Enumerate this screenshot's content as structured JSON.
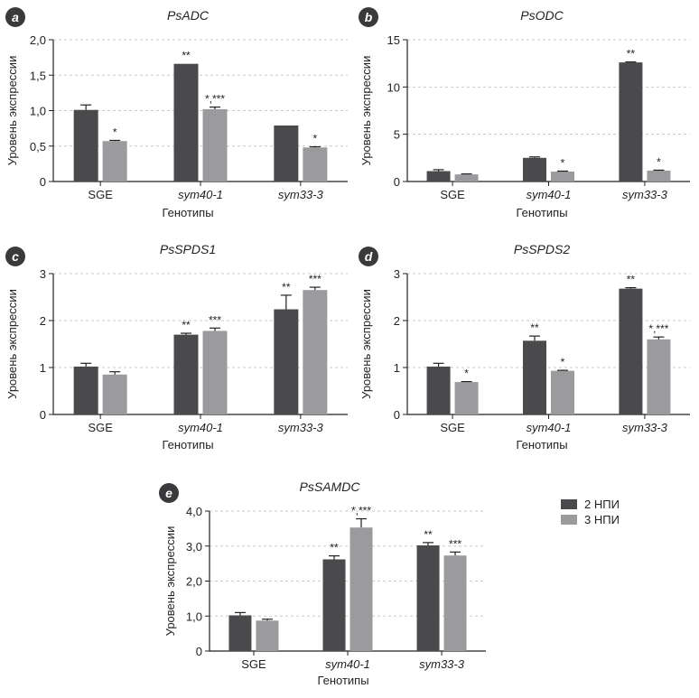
{
  "legend": {
    "items": [
      {
        "label": "2 НПИ",
        "color": "#4a4a4d"
      },
      {
        "label": "3 НПИ",
        "color": "#9b9b9e"
      }
    ]
  },
  "colors": {
    "series1": "#4a4a4d",
    "series2": "#9b9b9e",
    "grid": "#c8c8c8",
    "axis": "#222222",
    "badge": "#3a3a3c"
  },
  "chart_data": [
    {
      "panel": "a",
      "type": "bar",
      "title": "PsADC",
      "xlabel": "Генотипы",
      "ylabel": "Уровень экспрессии",
      "categories": [
        "SGE",
        "sym40-1",
        "sym33-3"
      ],
      "category_italic": [
        false,
        true,
        true
      ],
      "ylim": [
        0,
        2.0
      ],
      "yticks": [
        0,
        0.5,
        1.0,
        1.5,
        2.0
      ],
      "yticklabels": [
        "0",
        "0,5",
        "1,0",
        "1,5",
        "2,0"
      ],
      "grid": true,
      "series": [
        {
          "values": [
            1.01,
            1.66,
            0.79
          ],
          "errors": [
            0.07,
            0.0,
            0.0
          ],
          "annotations": [
            "",
            "**",
            ""
          ]
        },
        {
          "values": [
            0.57,
            1.02,
            0.48
          ],
          "errors": [
            0.01,
            0.03,
            0.01
          ],
          "annotations": [
            "*",
            "*,***",
            "*"
          ]
        }
      ]
    },
    {
      "panel": "b",
      "type": "bar",
      "title": "PsODC",
      "xlabel": "Генотипы",
      "ylabel": "Уровень экспрессии",
      "categories": [
        "SGE",
        "sym40-1",
        "sym33-3"
      ],
      "category_italic": [
        false,
        true,
        true
      ],
      "ylim": [
        0,
        15
      ],
      "yticks": [
        0,
        5,
        10,
        15
      ],
      "yticklabels": [
        "0",
        "5",
        "10",
        "15"
      ],
      "grid": true,
      "series": [
        {
          "values": [
            1.1,
            2.5,
            12.6
          ],
          "errors": [
            0.15,
            0.1,
            0.05
          ],
          "annotations": [
            "",
            "",
            "**"
          ]
        },
        {
          "values": [
            0.75,
            1.05,
            1.15
          ],
          "errors": [
            0.05,
            0.05,
            0.05
          ],
          "annotations": [
            "",
            "*",
            "*"
          ]
        }
      ]
    },
    {
      "panel": "c",
      "type": "bar",
      "title": "PsSPDS1",
      "xlabel": "Генотипы",
      "ylabel": "Уровень экспрессии",
      "categories": [
        "SGE",
        "sym40-1",
        "sym33-3"
      ],
      "category_italic": [
        false,
        true,
        true
      ],
      "ylim": [
        0,
        3
      ],
      "yticks": [
        0,
        1,
        2,
        3
      ],
      "yticklabels": [
        "0",
        "1",
        "2",
        "3"
      ],
      "grid": true,
      "series": [
        {
          "values": [
            1.02,
            1.7,
            2.24
          ],
          "errors": [
            0.07,
            0.03,
            0.3
          ],
          "annotations": [
            "",
            "**",
            "**"
          ]
        },
        {
          "values": [
            0.85,
            1.78,
            2.65
          ],
          "errors": [
            0.06,
            0.06,
            0.06
          ],
          "annotations": [
            "",
            "***",
            "***"
          ]
        }
      ]
    },
    {
      "panel": "d",
      "type": "bar",
      "title": "PsSPDS2",
      "xlabel": "Генотипы",
      "ylabel": "Уровень экспрессии",
      "categories": [
        "SGE",
        "sym40-1",
        "sym33-3"
      ],
      "category_italic": [
        false,
        true,
        true
      ],
      "ylim": [
        0,
        3
      ],
      "yticks": [
        0,
        1,
        2,
        3
      ],
      "yticklabels": [
        "0",
        "1",
        "2",
        "3"
      ],
      "grid": true,
      "series": [
        {
          "values": [
            1.02,
            1.57,
            2.68
          ],
          "errors": [
            0.07,
            0.1,
            0.02
          ],
          "annotations": [
            "",
            "**",
            "**"
          ]
        },
        {
          "values": [
            0.69,
            0.93,
            1.6
          ],
          "errors": [
            0.01,
            0.01,
            0.05
          ],
          "annotations": [
            "*",
            "*",
            "*,***"
          ]
        }
      ]
    },
    {
      "panel": "e",
      "type": "bar",
      "title": "PsSAMDC",
      "xlabel": "Генотипы",
      "ylabel": "Уровень экспрессии",
      "categories": [
        "SGE",
        "sym40-1",
        "sym33-3"
      ],
      "category_italic": [
        false,
        true,
        true
      ],
      "ylim": [
        0,
        4.0
      ],
      "yticks": [
        0,
        1.0,
        2.0,
        3.0,
        4.0
      ],
      "yticklabels": [
        "0",
        "1,0",
        "2,0",
        "3,0",
        "4,0"
      ],
      "grid": true,
      "series": [
        {
          "values": [
            1.02,
            2.62,
            3.02
          ],
          "errors": [
            0.08,
            0.1,
            0.08
          ],
          "annotations": [
            "",
            "**",
            "**"
          ]
        },
        {
          "values": [
            0.87,
            3.53,
            2.73
          ],
          "errors": [
            0.04,
            0.25,
            0.1
          ],
          "annotations": [
            "",
            "*,***",
            "***"
          ]
        }
      ]
    }
  ]
}
